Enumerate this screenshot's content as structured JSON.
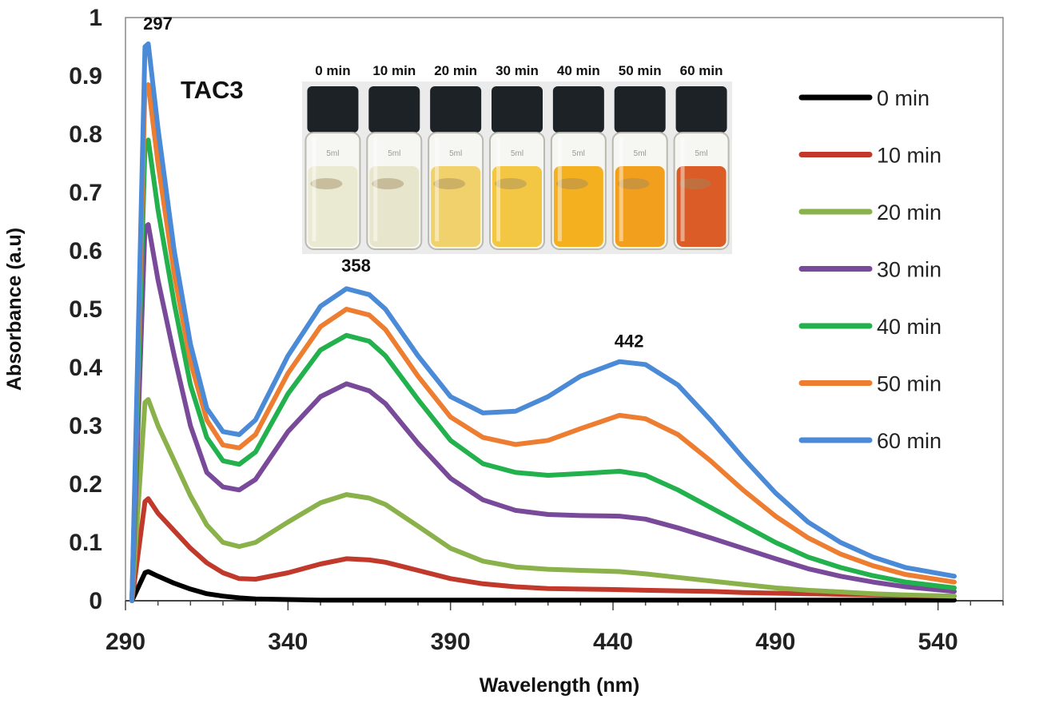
{
  "chart_data": {
    "type": "line",
    "title": "",
    "xlabel": "Wavelength (nm)",
    "ylabel": "Absorbance (a.u)",
    "xlim": [
      290,
      560
    ],
    "ylim": [
      0,
      1
    ],
    "x_ticks": [
      "290",
      "340",
      "390",
      "440",
      "490",
      "540"
    ],
    "y_ticks": [
      "0",
      "0.1",
      "0.2",
      "0.3",
      "0.4",
      "0.5",
      "0.6",
      "0.7",
      "0.8",
      "0.9",
      "1"
    ],
    "grid": false,
    "legend_position": "right",
    "sample_label": "TAC3",
    "peak_labels": [
      {
        "text": "297",
        "x": 297,
        "y": 0.955
      },
      {
        "text": "358",
        "x": 358,
        "y": 0.54
      },
      {
        "text": "442",
        "x": 442,
        "y": 0.41
      }
    ],
    "x": [
      292,
      296,
      297,
      300,
      305,
      310,
      315,
      320,
      325,
      330,
      340,
      350,
      358,
      365,
      370,
      380,
      390,
      400,
      410,
      420,
      430,
      442,
      450,
      460,
      470,
      480,
      490,
      500,
      510,
      520,
      530,
      545
    ],
    "series": [
      {
        "name": "0 min",
        "color": "#000000",
        "values": [
          0,
          0.048,
          0.05,
          0.042,
          0.03,
          0.02,
          0.012,
          0.008,
          0.005,
          0.003,
          0.002,
          0.001,
          0.001,
          0.001,
          0.001,
          0.001,
          0.001,
          0.001,
          0.001,
          0.001,
          0.001,
          0.001,
          0.001,
          0.001,
          0.001,
          0.001,
          0.001,
          0.001,
          0.001,
          0.001,
          0.001,
          0.001
        ]
      },
      {
        "name": "10 min",
        "color": "#c0392b",
        "values": [
          0,
          0.17,
          0.175,
          0.15,
          0.12,
          0.09,
          0.065,
          0.048,
          0.038,
          0.037,
          0.048,
          0.063,
          0.072,
          0.07,
          0.066,
          0.052,
          0.038,
          0.029,
          0.024,
          0.021,
          0.02,
          0.019,
          0.018,
          0.017,
          0.016,
          0.014,
          0.013,
          0.012,
          0.011,
          0.01,
          0.009,
          0.008
        ]
      },
      {
        "name": "20 min",
        "color": "#8ab14a",
        "values": [
          0,
          0.34,
          0.345,
          0.3,
          0.24,
          0.18,
          0.13,
          0.1,
          0.093,
          0.1,
          0.135,
          0.168,
          0.182,
          0.176,
          0.165,
          0.128,
          0.09,
          0.068,
          0.058,
          0.054,
          0.052,
          0.05,
          0.046,
          0.04,
          0.034,
          0.028,
          0.022,
          0.018,
          0.015,
          0.012,
          0.01,
          0.008
        ]
      },
      {
        "name": "30 min",
        "color": "#7a4a9a",
        "values": [
          0,
          0.64,
          0.645,
          0.55,
          0.42,
          0.3,
          0.22,
          0.195,
          0.19,
          0.208,
          0.29,
          0.35,
          0.372,
          0.36,
          0.338,
          0.27,
          0.21,
          0.173,
          0.155,
          0.148,
          0.146,
          0.145,
          0.14,
          0.125,
          0.108,
          0.09,
          0.072,
          0.055,
          0.042,
          0.032,
          0.024,
          0.016
        ]
      },
      {
        "name": "40 min",
        "color": "#22b14c",
        "values": [
          0,
          0.78,
          0.79,
          0.67,
          0.51,
          0.37,
          0.28,
          0.24,
          0.234,
          0.255,
          0.355,
          0.43,
          0.455,
          0.445,
          0.42,
          0.345,
          0.275,
          0.235,
          0.22,
          0.215,
          0.218,
          0.222,
          0.215,
          0.19,
          0.16,
          0.13,
          0.1,
          0.075,
          0.057,
          0.043,
          0.032,
          0.022
        ]
      },
      {
        "name": "50 min",
        "color": "#ed7d31",
        "values": [
          0,
          0.88,
          0.885,
          0.75,
          0.56,
          0.41,
          0.31,
          0.267,
          0.262,
          0.285,
          0.39,
          0.47,
          0.5,
          0.49,
          0.465,
          0.385,
          0.315,
          0.28,
          0.268,
          0.275,
          0.295,
          0.318,
          0.312,
          0.285,
          0.24,
          0.19,
          0.145,
          0.108,
          0.08,
          0.06,
          0.045,
          0.032
        ]
      },
      {
        "name": "60 min",
        "color": "#4a8ad6",
        "values": [
          0,
          0.95,
          0.955,
          0.81,
          0.6,
          0.44,
          0.33,
          0.29,
          0.285,
          0.31,
          0.42,
          0.505,
          0.535,
          0.525,
          0.5,
          0.42,
          0.35,
          0.322,
          0.325,
          0.35,
          0.385,
          0.41,
          0.405,
          0.37,
          0.31,
          0.245,
          0.185,
          0.135,
          0.1,
          0.075,
          0.057,
          0.042
        ]
      }
    ]
  },
  "inset": {
    "labels": [
      "0 min",
      "10 min",
      "20 min",
      "30 min",
      "40 min",
      "50 min",
      "60 min"
    ],
    "liquid_colors": [
      "#e9e8cf",
      "#e6e4c8",
      "#f0cf63",
      "#f2c33a",
      "#f4ac14",
      "#f19a12",
      "#d9531a"
    ],
    "vial_text": "5ml"
  }
}
